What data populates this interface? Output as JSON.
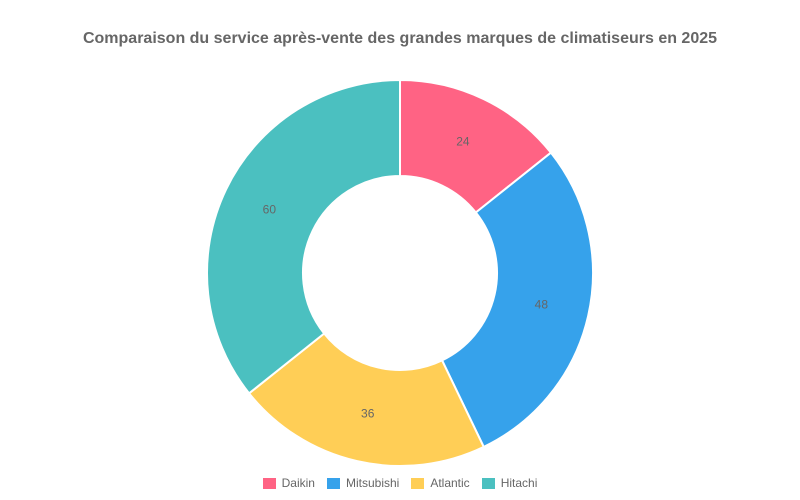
{
  "chart_data": {
    "type": "pie",
    "variant": "doughnut",
    "title": "Comparaison du service après-vente des grandes marques de climatiseurs en 2025",
    "categories": [
      "Daikin",
      "Mitsubishi",
      "Atlantic",
      "Hitachi"
    ],
    "values": [
      24,
      48,
      36,
      60
    ],
    "colors": [
      "#ff6384",
      "#36a2eb",
      "#ffce56",
      "#4bc0c0"
    ],
    "legend_position": "bottom"
  }
}
